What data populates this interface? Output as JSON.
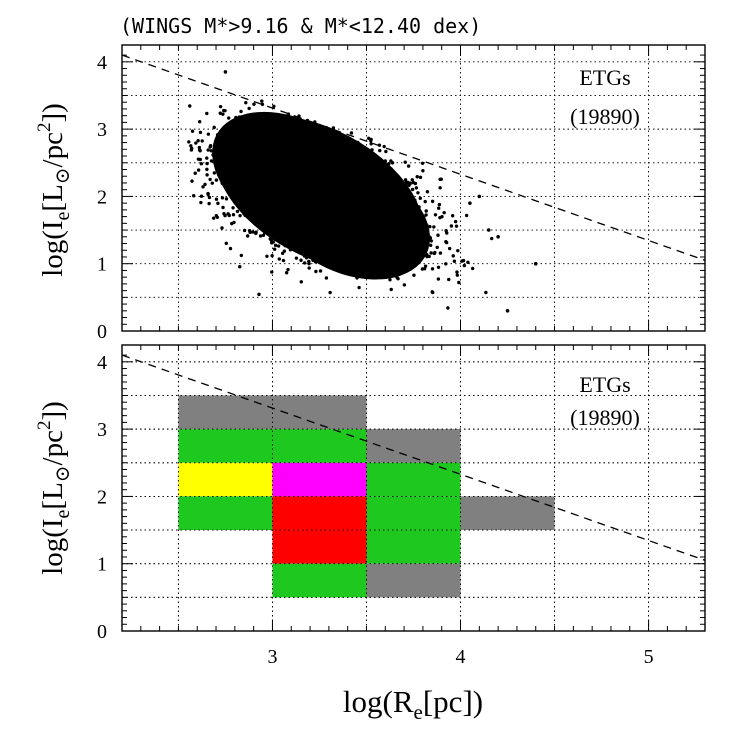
{
  "chart_data": {
    "type": "scatter",
    "title": "(WINGS M*>9.16 & M*<12.40 dex)",
    "xlabel": "log(R_e[pc])",
    "xlabel_parts": {
      "pre": "log(R",
      "sub": "e",
      "post": "[pc])"
    },
    "ylabel": "log(I_e[L_⊙/pc²])",
    "ylabel_parts": {
      "pre": "log(I",
      "sub": "e",
      "mid": "[L",
      "sun": "⊙",
      "slash": "/pc",
      "sup": "2",
      "post": "])"
    },
    "xlim": [
      2.2,
      5.3
    ],
    "ylim": [
      0,
      4.25
    ],
    "x_ticks": [
      "3",
      "4",
      "5"
    ],
    "y_ticks": [
      "0",
      "1",
      "2",
      "3",
      "4"
    ],
    "grid": "dotted",
    "limit_line": {
      "style": "dashed",
      "points": [
        [
          2.2,
          4.1
        ],
        [
          5.3,
          1.05
        ]
      ]
    },
    "panels": [
      {
        "kind": "scatter",
        "label": "ETGs",
        "count": "(19890)",
        "cloud": {
          "center": [
            3.25,
            2.05
          ],
          "n_points": 19890,
          "x_range": [
            2.55,
            4.05
          ],
          "y_range": [
            0.5,
            3.35
          ],
          "outliers": [
            [
              4.25,
              0.3
            ],
            [
              4.4,
              1.0
            ],
            [
              4.15,
              1.5
            ],
            [
              4.2,
              1.4
            ],
            [
              2.75,
              3.85
            ],
            [
              4.05,
              1.9
            ],
            [
              4.1,
              2.0
            ]
          ]
        }
      },
      {
        "kind": "binned",
        "label": "ETGs",
        "count": "(19890)",
        "bin_width": [
          0.5,
          0.5
        ],
        "cells": [
          {
            "x": 2.5,
            "y": 3.0,
            "color": "#808080"
          },
          {
            "x": 3.0,
            "y": 3.0,
            "color": "#808080"
          },
          {
            "x": 2.5,
            "y": 2.5,
            "color": "#1ec81e"
          },
          {
            "x": 3.0,
            "y": 2.5,
            "color": "#1ec81e"
          },
          {
            "x": 3.5,
            "y": 2.5,
            "color": "#808080"
          },
          {
            "x": 2.5,
            "y": 2.0,
            "color": "#ffff00"
          },
          {
            "x": 3.0,
            "y": 2.0,
            "color": "#ff00ff"
          },
          {
            "x": 3.5,
            "y": 2.0,
            "color": "#1ec81e"
          },
          {
            "x": 2.5,
            "y": 1.5,
            "color": "#1ec81e"
          },
          {
            "x": 3.0,
            "y": 1.5,
            "color": "#ff0000"
          },
          {
            "x": 3.5,
            "y": 1.5,
            "color": "#1ec81e"
          },
          {
            "x": 4.0,
            "y": 1.5,
            "color": "#808080"
          },
          {
            "x": 3.0,
            "y": 1.0,
            "color": "#ff0000"
          },
          {
            "x": 3.5,
            "y": 1.0,
            "color": "#1ec81e"
          },
          {
            "x": 3.0,
            "y": 0.5,
            "color": "#1ec81e"
          },
          {
            "x": 3.5,
            "y": 0.5,
            "color": "#808080"
          }
        ]
      }
    ]
  }
}
